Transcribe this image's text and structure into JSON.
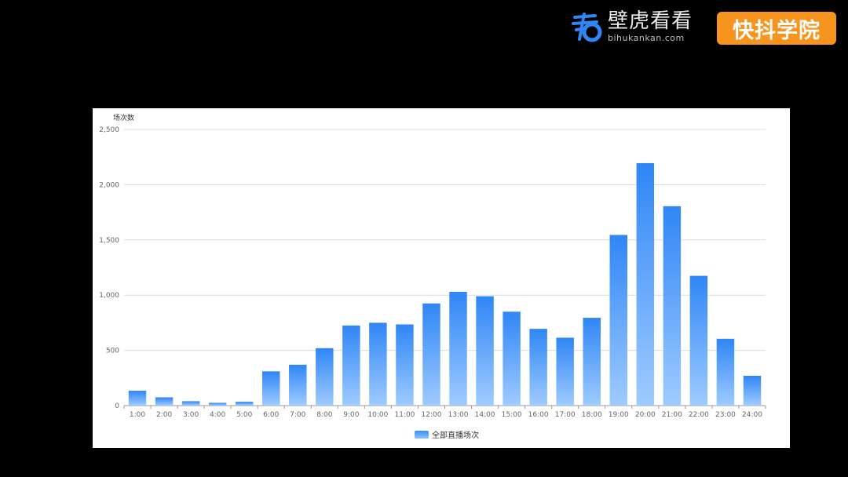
{
  "brand": {
    "name": "壁虎看看",
    "url": "bihukankan.com",
    "badge": "快抖学院",
    "logo_icon": "bihu-logo-icon"
  },
  "colors": {
    "bar_top": "#2f86f5",
    "bar_bottom": "#9fcbff",
    "grid": "#dcdcdc",
    "axis_text": "#666666",
    "badge": "#f7941d"
  },
  "chart_data": {
    "type": "bar",
    "ylabel": "场次数",
    "xlabel": "",
    "ylim": [
      0,
      2500
    ],
    "yticks": [
      0,
      500,
      1000,
      1500,
      2000,
      2500
    ],
    "ytick_labels": [
      "0",
      "500",
      "1,000",
      "1,500",
      "2,000",
      "2,500"
    ],
    "grid": true,
    "legend_position": "bottom-center",
    "categories": [
      "1:00",
      "2:00",
      "3:00",
      "4:00",
      "5:00",
      "6:00",
      "7:00",
      "8:00",
      "9:00",
      "10:00",
      "11:00",
      "12:00",
      "13:00",
      "14:00",
      "15:00",
      "16:00",
      "17:00",
      "18:00",
      "19:00",
      "20:00",
      "21:00",
      "22:00",
      "23:00",
      "24:00"
    ],
    "series": [
      {
        "name": "全部直播场次",
        "values": [
          135,
          75,
          40,
          25,
          35,
          310,
          370,
          520,
          725,
          750,
          735,
          925,
          1030,
          990,
          850,
          695,
          615,
          795,
          1545,
          2195,
          1805,
          1175,
          605,
          270
        ]
      }
    ]
  }
}
